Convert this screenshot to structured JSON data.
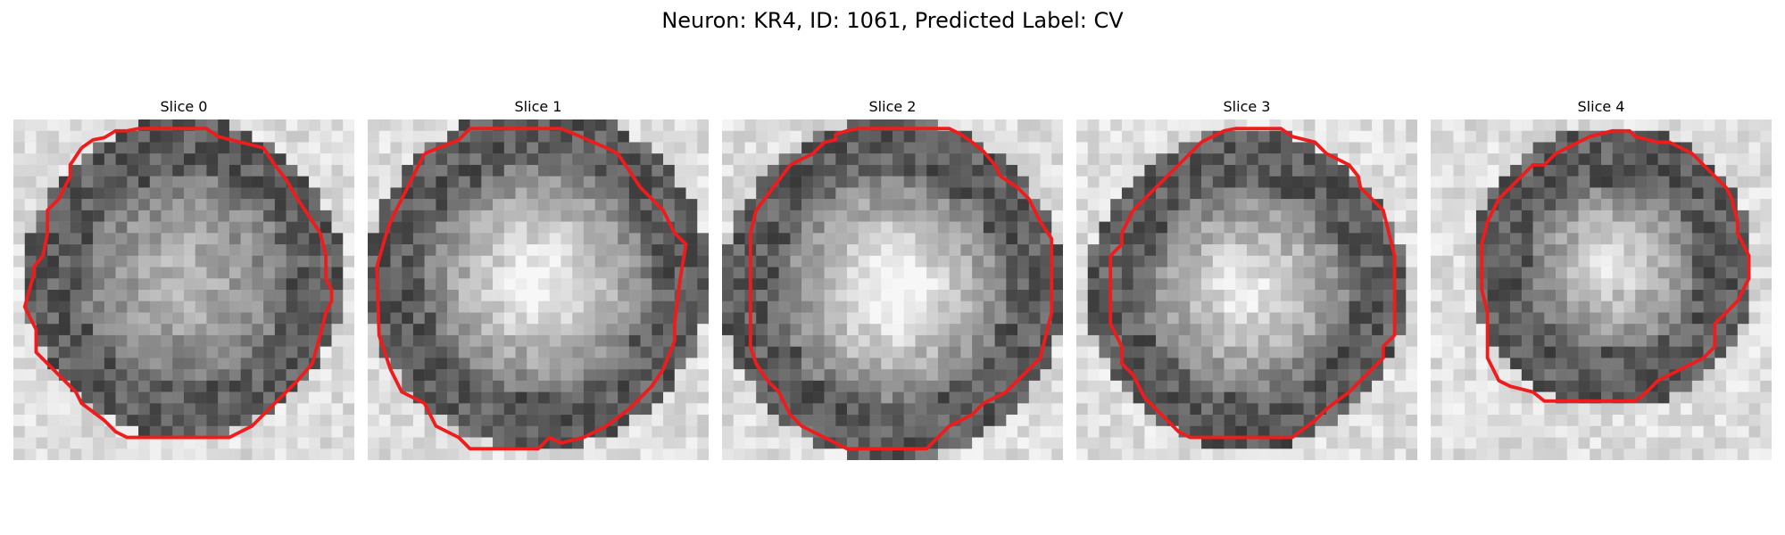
{
  "figure": {
    "title": "Neuron: KR4, ID: 1061, Predicted Label: CV"
  },
  "colors": {
    "contour": "#ee1c1c",
    "background": "#ffffff"
  },
  "panels": [
    {
      "title": "Slice 0"
    },
    {
      "title": "Slice 1"
    },
    {
      "title": "Slice 2"
    },
    {
      "title": "Slice 3"
    },
    {
      "title": "Slice 4"
    }
  ]
}
